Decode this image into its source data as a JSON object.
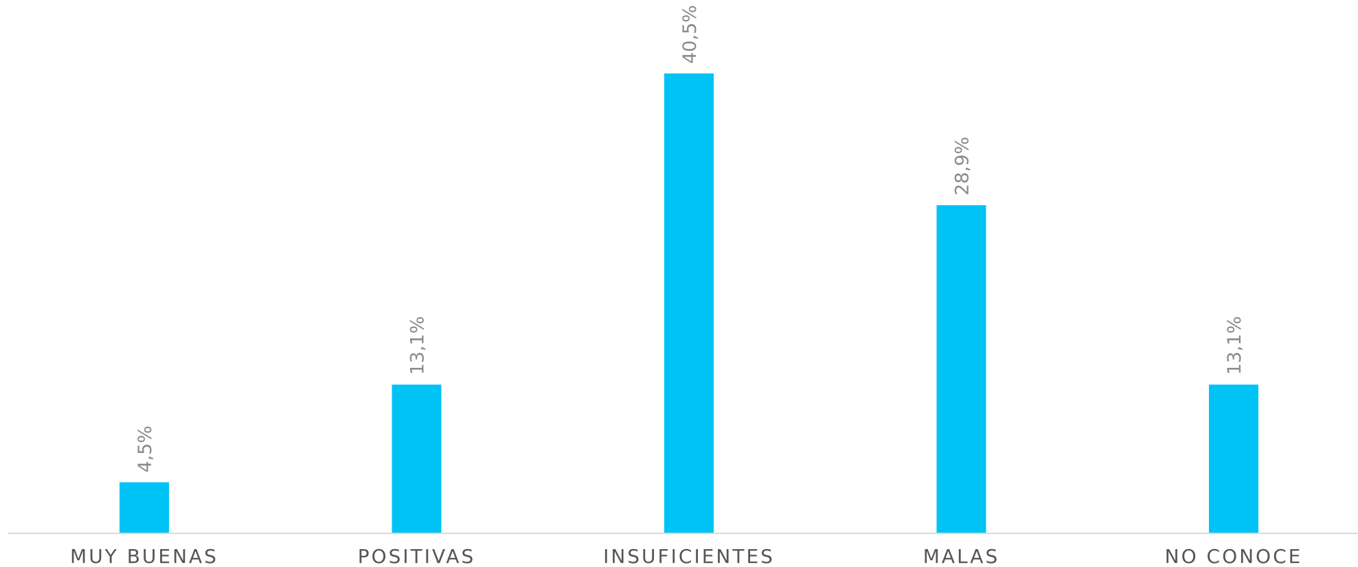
{
  "chart_data": {
    "type": "bar",
    "categories": [
      "MUY BUENAS",
      "POSITIVAS",
      "INSUFICIENTES",
      "MALAS",
      "NO CONOCE"
    ],
    "values": [
      4.5,
      13.1,
      40.5,
      28.9,
      13.1
    ],
    "value_labels": [
      "4,5%",
      "13,1%",
      "40,5%",
      "28,9%",
      "13,1%"
    ],
    "title": "",
    "xlabel": "",
    "ylabel": "",
    "ylim": [
      0,
      40.5
    ],
    "grid": false,
    "legend": "none",
    "bar_color": "#00c3f5",
    "axis_color": "#d9d9d9",
    "value_label_color": "#8a8a8a",
    "category_label_color": "#555555"
  }
}
